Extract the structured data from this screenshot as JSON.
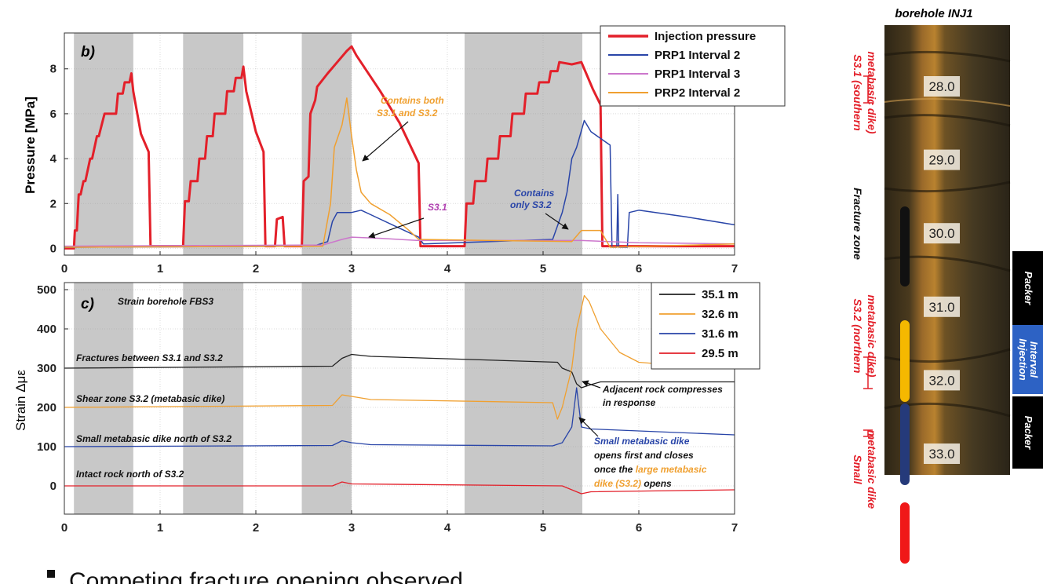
{
  "chart_data": [
    {
      "type": "line",
      "panel_label": "b)",
      "y_label": "Pressure [MPa]",
      "xlim": [
        0,
        7
      ],
      "ylim": [
        -0.3,
        9.6
      ],
      "xticks": [
        0,
        1,
        2,
        3,
        4,
        5,
        6,
        7
      ],
      "yticks": [
        0,
        2,
        4,
        6,
        8
      ],
      "grid": true,
      "legend": "upper right",
      "shaded_regions": [
        [
          0.1,
          0.72
        ],
        [
          1.24,
          1.87
        ],
        [
          2.48,
          3.0
        ],
        [
          4.18,
          5.41
        ]
      ],
      "shade_color": "#c8c8c8",
      "series": [
        {
          "name": "Injection pressure",
          "color": "#e3202a",
          "line_width": 3,
          "x": [
            0,
            0.1,
            0.11,
            0.13,
            0.15,
            0.17,
            0.2,
            0.22,
            0.27,
            0.29,
            0.34,
            0.36,
            0.42,
            0.44,
            0.54,
            0.56,
            0.61,
            0.63,
            0.68,
            0.7,
            0.72,
            0.8,
            0.88,
            0.9,
            1.24,
            1.26,
            1.3,
            1.32,
            1.39,
            1.41,
            1.47,
            1.49,
            1.55,
            1.57,
            1.68,
            1.7,
            1.77,
            1.79,
            1.85,
            1.87,
            1.9,
            2.0,
            2.08,
            2.1,
            2.2,
            2.22,
            2.28,
            2.3,
            2.48,
            2.5,
            2.55,
            2.57,
            2.62,
            2.64,
            2.75,
            2.85,
            2.95,
            3.0,
            3.05,
            3.3,
            3.5,
            3.7,
            3.72,
            4.18,
            4.2,
            4.27,
            4.29,
            4.4,
            4.42,
            4.53,
            4.55,
            4.66,
            4.68,
            4.8,
            4.82,
            4.94,
            4.96,
            5.06,
            5.08,
            5.15,
            5.17,
            5.3,
            5.4,
            5.45,
            5.52,
            5.6,
            5.62,
            6.0,
            7.0
          ],
          "values": [
            0,
            0,
            0.8,
            0.8,
            2.4,
            2.4,
            3,
            3,
            4,
            4,
            5,
            5,
            6,
            6,
            6,
            6.9,
            6.9,
            7.4,
            7.4,
            7.8,
            7.0,
            5.1,
            4.3,
            0.1,
            0.1,
            2.1,
            2.1,
            3,
            3,
            4,
            4,
            5,
            5,
            6,
            6,
            7,
            7,
            7.6,
            7.6,
            8.1,
            7.0,
            5.2,
            4.3,
            0.1,
            0.1,
            1.3,
            1.4,
            0.1,
            0.1,
            3,
            3.2,
            6,
            6.6,
            7.2,
            7.8,
            8.3,
            8.8,
            9.0,
            8.6,
            7.0,
            5.6,
            3.8,
            0.1,
            0.1,
            2,
            2,
            3,
            3,
            4,
            4,
            5,
            5,
            6,
            6,
            6.9,
            6.9,
            7.4,
            7.4,
            7.9,
            7.9,
            8.3,
            8.2,
            8.3,
            7.8,
            7.1,
            6.4,
            0.1,
            0.1,
            0.1
          ]
        },
        {
          "name": "PRP1 Interval 2",
          "color": "#2945a8",
          "line_width": 1.5,
          "x": [
            0,
            2.6,
            2.75,
            2.8,
            2.85,
            3.0,
            3.1,
            3.2,
            3.5,
            3.7,
            3.75,
            5.1,
            5.2,
            5.25,
            5.3,
            5.35,
            5.43,
            5.5,
            5.6,
            5.7,
            5.72,
            5.77,
            5.78,
            5.79,
            5.88,
            5.9,
            6.0,
            6.5,
            7.0
          ],
          "values": [
            0.05,
            0.1,
            0.3,
            1.2,
            1.6,
            1.6,
            1.7,
            1.5,
            0.9,
            0.5,
            0.2,
            0.4,
            1.6,
            2.5,
            4.0,
            4.5,
            5.7,
            5.2,
            4.9,
            4.6,
            0.05,
            0.05,
            2.4,
            0.05,
            0.05,
            1.6,
            1.7,
            1.4,
            1.05
          ]
        },
        {
          "name": "PRP1 Interval 3",
          "color": "#cc77cc",
          "line_width": 1.5,
          "x": [
            0,
            2.7,
            2.9,
            3.0,
            3.3,
            3.7,
            5.4,
            6.0,
            7.0
          ],
          "values": [
            0.1,
            0.15,
            0.4,
            0.5,
            0.45,
            0.35,
            0.35,
            0.25,
            0.2
          ]
        },
        {
          "name": "PRP2 Interval 2",
          "color": "#f0a030",
          "line_width": 1.5,
          "x": [
            0,
            2.7,
            2.78,
            2.82,
            2.9,
            2.95,
            3.0,
            3.05,
            3.1,
            3.2,
            3.4,
            3.6,
            3.7,
            5.3,
            5.4,
            5.6,
            5.7,
            7.0
          ],
          "values": [
            0.05,
            0.1,
            2,
            4.5,
            5.5,
            6.7,
            5.0,
            3.5,
            2.5,
            2.0,
            1.5,
            0.8,
            0.4,
            0.3,
            0.8,
            0.8,
            0.05,
            0.2
          ]
        }
      ],
      "annotations": [
        "Contains both",
        "S3.1 and S3.2",
        "Contains",
        "only S3.2",
        "S3.1"
      ]
    },
    {
      "type": "line",
      "panel_label": "c)",
      "y_label": "Strain Δμε",
      "xlim": [
        0,
        7
      ],
      "ylim": [
        -72,
        518
      ],
      "xticks": [
        0,
        1,
        2,
        3,
        4,
        5,
        6,
        7
      ],
      "yticks": [
        0,
        100,
        200,
        300,
        400,
        500
      ],
      "grid": true,
      "legend": "upper right",
      "shaded_regions": [
        [
          0.1,
          0.72
        ],
        [
          1.24,
          1.87
        ],
        [
          2.48,
          3.0
        ],
        [
          4.18,
          5.41
        ]
      ],
      "shade_color": "#c8c8c8",
      "series": [
        {
          "name": "35.1 m",
          "color": "#222222",
          "line_width": 1.3,
          "x": [
            0,
            2.8,
            2.9,
            3.0,
            3.2,
            5.15,
            5.2,
            5.3,
            5.35,
            5.4,
            5.5,
            5.6,
            7.0
          ],
          "values": [
            300,
            305,
            325,
            335,
            330,
            315,
            300,
            290,
            260,
            250,
            258,
            265,
            265
          ]
        },
        {
          "name": "32.6 m",
          "color": "#f0a030",
          "line_width": 1.3,
          "x": [
            0,
            2.8,
            2.9,
            3.0,
            3.2,
            5.1,
            5.15,
            5.2,
            5.3,
            5.35,
            5.43,
            5.48,
            5.6,
            5.8,
            6.0,
            6.5,
            7.0
          ],
          "values": [
            200,
            205,
            232,
            228,
            220,
            212,
            170,
            200,
            300,
            400,
            485,
            470,
            400,
            340,
            315,
            305,
            300
          ]
        },
        {
          "name": "31.6 m",
          "color": "#2945a8",
          "line_width": 1.3,
          "x": [
            0,
            2.8,
            2.9,
            3.0,
            3.2,
            5.1,
            5.2,
            5.3,
            5.35,
            5.4,
            5.5,
            7.0
          ],
          "values": [
            100,
            103,
            115,
            110,
            105,
            102,
            110,
            150,
            250,
            150,
            145,
            130
          ]
        },
        {
          "name": "29.5 m",
          "color": "#e3202a",
          "line_width": 1.3,
          "x": [
            0,
            2.8,
            2.9,
            3.0,
            5.2,
            5.3,
            5.4,
            5.5,
            7.0
          ],
          "values": [
            0,
            0,
            10,
            5,
            0,
            -10,
            -20,
            -15,
            -10
          ]
        }
      ],
      "annotations": [
        "Strain borehole FBS3",
        "Fractures between S3.1 and S3.2",
        "Shear zone S3.2 (metabasic dike)",
        "Small metabasic dike north of S3.2",
        "Intact rock north of S3.2",
        "Adjacent rock compresses",
        "in response",
        "Small metabasic dike",
        "opens first and closes",
        "once the",
        "large metabasic",
        "dike (S3.2)",
        "opens"
      ]
    }
  ],
  "borehole": {
    "title": "borehole INJ1",
    "depths": [
      "28.0",
      "29.0",
      "30.0",
      "31.0",
      "32.0",
      "33.0"
    ],
    "zones": [
      [
        "S3.1 (southern",
        "metabasic dike)"
      ],
      [
        "Fracture zone"
      ],
      [
        "S3.2 (northern",
        "metabasic dike)"
      ],
      [
        "Small",
        "metabasic dike"
      ]
    ],
    "packers": [
      [
        "Packer"
      ],
      [
        "Injection",
        "Interval"
      ],
      [
        "Packer"
      ]
    ]
  },
  "bullet": "Competing fracture opening observed"
}
